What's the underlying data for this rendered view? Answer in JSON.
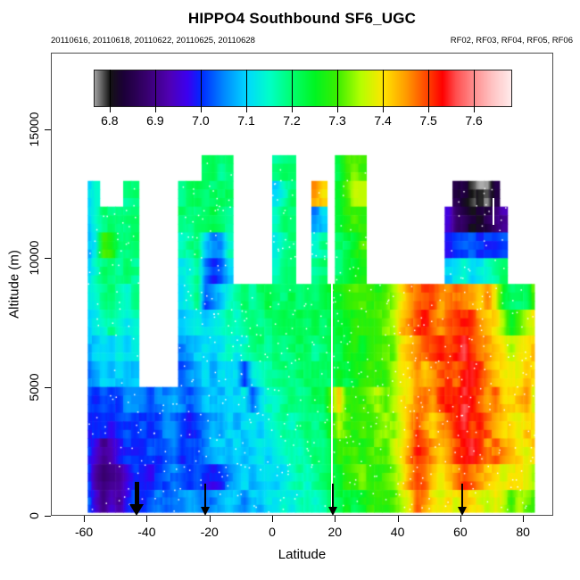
{
  "title": "HIPPO4 Southbound SF6_UGC",
  "subtitle_left": "20110616, 20110618, 20110622, 20110625, 20110628",
  "subtitle_right": "RF02, RF03, RF04, RF05, RF06",
  "chart_data": {
    "type": "heatmap",
    "title": "HIPPO4 Southbound SF6_UGC",
    "flight_dates": [
      "20110616",
      "20110618",
      "20110622",
      "20110625",
      "20110628"
    ],
    "flight_numbers": [
      "RF02",
      "RF03",
      "RF04",
      "RF05",
      "RF06"
    ],
    "xlabel": "Latitude",
    "ylabel": "Altitude (m)",
    "xlim": [
      -70.5,
      89.5
    ],
    "ylim": [
      0,
      18000
    ],
    "xticks": [
      -60,
      -40,
      -20,
      0,
      20,
      40,
      60,
      80
    ],
    "yticks": [
      0,
      5000,
      10000,
      15000
    ],
    "grid_on": false,
    "point_markers": {
      "color": "#ffffff",
      "style": "small dots scattered over sampled data"
    },
    "colorbar": {
      "labels": [
        "6.8",
        "6.9",
        "7.0",
        "7.1",
        "7.2",
        "7.3",
        "7.4",
        "7.5",
        "7.6"
      ],
      "label_values": [
        6.8,
        6.9,
        7.0,
        7.1,
        7.2,
        7.3,
        7.4,
        7.5,
        7.6
      ],
      "bar_min": 6.767,
      "bar_max": 7.682,
      "palette_stops": [
        [
          6.76,
          "#b8b8b8"
        ],
        [
          6.78,
          "#686868"
        ],
        [
          6.8,
          "#141414"
        ],
        [
          6.83,
          "#1c0038"
        ],
        [
          6.88,
          "#38006e"
        ],
        [
          6.93,
          "#5000b4"
        ],
        [
          6.97,
          "#3c00f0"
        ],
        [
          7.0,
          "#0028ff"
        ],
        [
          7.05,
          "#0088ff"
        ],
        [
          7.1,
          "#00d8ff"
        ],
        [
          7.15,
          "#00ffc8"
        ],
        [
          7.2,
          "#00ff6e"
        ],
        [
          7.25,
          "#00f522"
        ],
        [
          7.3,
          "#3cee00"
        ],
        [
          7.35,
          "#b4ff00"
        ],
        [
          7.4,
          "#ffe600"
        ],
        [
          7.45,
          "#ff9b00"
        ],
        [
          7.5,
          "#ff3c00"
        ],
        [
          7.53,
          "#ff0000"
        ],
        [
          7.56,
          "#ff5050"
        ],
        [
          7.6,
          "#ff9090"
        ],
        [
          7.64,
          "#ffc4c4"
        ],
        [
          7.682,
          "#ffecec"
        ]
      ]
    },
    "profile_arrows": {
      "latitudes": [
        -43.2,
        -21.3,
        19.4,
        60.7
      ],
      "bold_index": 0
    },
    "gap_lines": [
      {
        "lat": 19.0,
        "alt_bottom": 0,
        "alt_top": 13500
      },
      {
        "lat": 70.5,
        "alt_bottom": 11300,
        "alt_top": 12350
      }
    ],
    "grid": {
      "lat_min": -60,
      "lat_step": 2.5,
      "cols": 58,
      "alt_min": 0,
      "alt_step": 1000,
      "rows": 14,
      "row_order": "top row = 13000-14000 m, bottom row = 0-1000 m; value units = SF6 (ppt)",
      "data_lat_edges": [
        -58.8,
        83.6
      ],
      "values": [
        [
          null,
          null,
          null,
          null,
          null,
          null,
          null,
          null,
          null,
          null,
          null,
          null,
          null,
          null,
          null,
          7.2,
          7.22,
          7.18,
          7.2,
          null,
          null,
          null,
          null,
          null,
          7.18,
          7.2,
          7.2,
          null,
          null,
          null,
          null,
          null,
          7.22,
          7.3,
          7.32,
          7.3,
          null,
          null,
          null,
          null,
          null,
          null,
          null,
          null,
          null,
          null,
          null,
          null,
          null,
          null,
          null,
          null,
          null,
          null,
          null,
          null,
          null,
          null
        ],
        [
          7.1,
          7.15,
          null,
          null,
          null,
          7.18,
          7.2,
          null,
          null,
          null,
          null,
          null,
          7.18,
          7.2,
          7.22,
          7.2,
          7.2,
          7.22,
          7.2,
          null,
          null,
          null,
          null,
          null,
          7.1,
          7.15,
          7.2,
          null,
          null,
          7.45,
          7.4,
          null,
          7.25,
          7.3,
          7.35,
          7.35,
          null,
          null,
          null,
          null,
          null,
          null,
          null,
          null,
          null,
          null,
          null,
          6.85,
          6.82,
          6.8,
          6.78,
          6.78,
          6.85,
          null,
          null,
          null,
          null,
          null
        ],
        [
          7.1,
          7.15,
          7.2,
          7.2,
          7.18,
          7.2,
          7.2,
          null,
          null,
          null,
          null,
          null,
          7.2,
          7.18,
          7.2,
          7.2,
          7.22,
          7.2,
          7.18,
          null,
          null,
          null,
          null,
          null,
          7.15,
          7.2,
          7.2,
          null,
          null,
          7.05,
          7.1,
          null,
          7.25,
          7.28,
          7.3,
          7.28,
          null,
          null,
          null,
          null,
          null,
          null,
          null,
          null,
          null,
          null,
          6.95,
          6.88,
          6.85,
          6.82,
          6.82,
          6.85,
          6.88,
          6.92,
          null,
          null,
          null,
          null
        ],
        [
          7.08,
          7.12,
          7.3,
          7.28,
          7.2,
          7.18,
          7.2,
          null,
          null,
          null,
          null,
          null,
          7.15,
          7.18,
          7.2,
          7.1,
          7.05,
          7.05,
          7.15,
          null,
          null,
          null,
          null,
          null,
          7.12,
          7.18,
          7.2,
          null,
          null,
          7.15,
          7.18,
          null,
          7.2,
          7.22,
          7.25,
          7.3,
          null,
          null,
          null,
          null,
          null,
          null,
          null,
          null,
          null,
          null,
          6.98,
          7.0,
          7.02,
          7.02,
          7.0,
          7.0,
          7.0,
          7.02,
          null,
          null,
          null,
          null
        ],
        [
          7.1,
          7.15,
          7.2,
          7.2,
          7.18,
          7.2,
          7.18,
          null,
          null,
          null,
          null,
          null,
          7.12,
          7.15,
          7.18,
          7.05,
          7.0,
          7.02,
          7.1,
          null,
          null,
          null,
          null,
          null,
          7.15,
          7.18,
          7.2,
          null,
          null,
          7.18,
          7.2,
          null,
          7.2,
          7.22,
          7.25,
          7.28,
          null,
          null,
          null,
          null,
          null,
          null,
          null,
          null,
          null,
          null,
          7.1,
          7.12,
          7.15,
          7.1,
          7.12,
          7.15,
          7.18,
          7.2,
          null,
          null,
          null,
          null
        ],
        [
          7.12,
          7.15,
          7.18,
          7.2,
          7.18,
          7.15,
          7.18,
          null,
          null,
          null,
          null,
          null,
          7.1,
          7.15,
          7.18,
          7.02,
          7.05,
          7.1,
          7.15,
          7.18,
          7.2,
          7.18,
          7.2,
          7.22,
          7.2,
          7.2,
          7.22,
          7.2,
          7.22,
          7.2,
          7.22,
          7.25,
          7.25,
          7.28,
          7.3,
          7.3,
          7.3,
          7.28,
          7.3,
          7.35,
          7.4,
          7.45,
          7.48,
          7.5,
          7.5,
          7.45,
          7.45,
          7.48,
          7.45,
          7.45,
          7.42,
          7.45,
          7.4,
          7.25,
          7.2,
          7.2,
          7.22,
          7.3
        ],
        [
          7.1,
          7.12,
          7.15,
          7.18,
          7.15,
          7.12,
          7.15,
          null,
          null,
          null,
          null,
          null,
          7.08,
          7.1,
          7.12,
          7.1,
          7.12,
          7.15,
          7.18,
          7.15,
          7.18,
          7.2,
          7.18,
          7.2,
          7.2,
          7.22,
          7.2,
          7.22,
          7.2,
          7.22,
          7.2,
          7.22,
          7.25,
          7.25,
          7.28,
          7.3,
          7.28,
          7.3,
          7.32,
          7.35,
          7.42,
          7.45,
          7.5,
          7.52,
          7.48,
          7.45,
          7.48,
          7.5,
          7.52,
          7.5,
          7.45,
          7.42,
          7.4,
          7.35,
          7.25,
          7.3,
          7.35,
          7.38
        ],
        [
          7.08,
          7.1,
          7.12,
          7.1,
          7.12,
          7.1,
          7.12,
          null,
          null,
          null,
          null,
          null,
          7.05,
          7.08,
          7.1,
          7.12,
          7.1,
          7.12,
          7.15,
          7.12,
          7.15,
          7.18,
          7.2,
          7.18,
          7.2,
          7.18,
          7.2,
          7.22,
          7.2,
          7.18,
          7.2,
          7.22,
          7.22,
          7.25,
          7.28,
          7.25,
          7.28,
          7.3,
          7.3,
          7.32,
          7.4,
          7.42,
          7.45,
          7.48,
          7.5,
          7.52,
          7.5,
          7.52,
          7.55,
          7.5,
          7.48,
          7.45,
          7.42,
          7.4,
          7.35,
          7.38,
          7.4,
          7.42
        ],
        [
          7.05,
          7.08,
          7.1,
          7.08,
          7.1,
          7.08,
          7.1,
          null,
          null,
          null,
          null,
          null,
          7.02,
          7.05,
          7.08,
          7.1,
          7.08,
          7.1,
          7.12,
          7.1,
          7.0,
          7.12,
          7.15,
          7.18,
          7.18,
          7.2,
          7.18,
          7.2,
          7.22,
          7.2,
          7.22,
          7.2,
          7.25,
          7.22,
          7.25,
          7.28,
          7.3,
          7.28,
          7.3,
          7.35,
          7.38,
          7.4,
          7.45,
          7.42,
          7.45,
          7.48,
          7.5,
          7.48,
          7.52,
          7.55,
          7.5,
          7.45,
          7.42,
          7.4,
          7.38,
          7.4,
          7.42,
          7.4
        ],
        [
          7.02,
          7.0,
          7.02,
          7.0,
          7.02,
          7.05,
          7.05,
          7.05,
          7.02,
          7.05,
          7.05,
          7.08,
          7.05,
          7.02,
          7.05,
          7.08,
          7.1,
          7.08,
          7.1,
          7.1,
          7.12,
          7.02,
          7.1,
          7.15,
          7.15,
          7.18,
          7.2,
          7.18,
          7.2,
          7.22,
          7.2,
          7.3,
          7.42,
          7.3,
          7.28,
          7.3,
          7.32,
          7.35,
          7.3,
          7.35,
          7.38,
          7.42,
          7.45,
          7.48,
          7.45,
          7.5,
          7.52,
          7.5,
          7.55,
          7.52,
          7.48,
          7.45,
          7.48,
          7.42,
          7.4,
          7.42,
          7.45,
          7.38
        ],
        [
          7.0,
          6.98,
          7.0,
          6.98,
          7.0,
          7.02,
          7.0,
          7.02,
          7.0,
          7.02,
          7.05,
          7.05,
          7.0,
          6.98,
          7.02,
          7.05,
          7.08,
          7.05,
          7.1,
          7.08,
          7.1,
          7.12,
          7.1,
          7.12,
          7.15,
          7.18,
          7.15,
          7.18,
          7.2,
          7.18,
          7.2,
          7.25,
          7.35,
          7.3,
          7.28,
          7.3,
          7.3,
          7.32,
          7.35,
          7.32,
          7.38,
          7.42,
          7.5,
          7.45,
          7.42,
          7.45,
          7.48,
          7.52,
          7.55,
          7.5,
          7.52,
          7.48,
          7.45,
          7.42,
          7.4,
          7.38,
          7.42,
          7.4
        ],
        [
          7.0,
          6.95,
          6.9,
          6.92,
          6.98,
          7.0,
          7.0,
          7.0,
          7.02,
          7.0,
          7.02,
          7.05,
          7.0,
          7.02,
          7.0,
          7.05,
          7.08,
          7.1,
          7.08,
          7.1,
          7.08,
          7.1,
          7.12,
          7.1,
          7.12,
          7.15,
          7.18,
          7.15,
          7.18,
          7.2,
          7.18,
          7.22,
          7.3,
          7.28,
          7.3,
          7.28,
          7.3,
          7.32,
          7.3,
          7.35,
          7.4,
          7.45,
          7.52,
          7.5,
          7.45,
          7.42,
          7.45,
          7.5,
          7.52,
          7.55,
          7.5,
          7.45,
          7.48,
          7.45,
          7.42,
          7.4,
          7.38,
          7.42
        ],
        [
          7.0,
          6.92,
          6.88,
          6.9,
          6.9,
          6.95,
          7.0,
          7.0,
          6.98,
          7.0,
          7.02,
          7.05,
          7.02,
          7.0,
          7.02,
          7.0,
          6.98,
          7.0,
          7.05,
          7.08,
          7.1,
          7.08,
          7.1,
          7.12,
          7.1,
          7.12,
          7.15,
          7.18,
          7.15,
          7.18,
          7.2,
          7.22,
          7.25,
          7.28,
          7.3,
          7.32,
          7.3,
          7.28,
          7.3,
          7.32,
          7.38,
          7.45,
          7.5,
          7.48,
          7.42,
          7.4,
          7.42,
          7.45,
          7.5,
          7.48,
          7.45,
          7.42,
          7.4,
          7.38,
          7.4,
          7.38,
          7.4,
          7.35
        ],
        [
          7.02,
          6.95,
          6.9,
          6.95,
          6.92,
          6.98,
          7.02,
          7.0,
          7.02,
          7.05,
          7.02,
          7.05,
          7.05,
          7.08,
          7.05,
          7.02,
          7.05,
          7.08,
          7.1,
          7.08,
          7.05,
          7.1,
          7.08,
          7.12,
          7.12,
          7.15,
          7.12,
          7.15,
          7.18,
          7.15,
          7.18,
          7.2,
          7.22,
          7.25,
          7.22,
          7.25,
          7.28,
          7.3,
          7.28,
          7.3,
          7.35,
          7.4,
          7.48,
          7.45,
          7.4,
          7.38,
          7.4,
          7.38,
          7.42,
          7.4,
          7.38,
          7.35,
          7.4,
          7.35,
          7.3,
          7.35,
          7.32,
          7.3
        ]
      ]
    }
  }
}
